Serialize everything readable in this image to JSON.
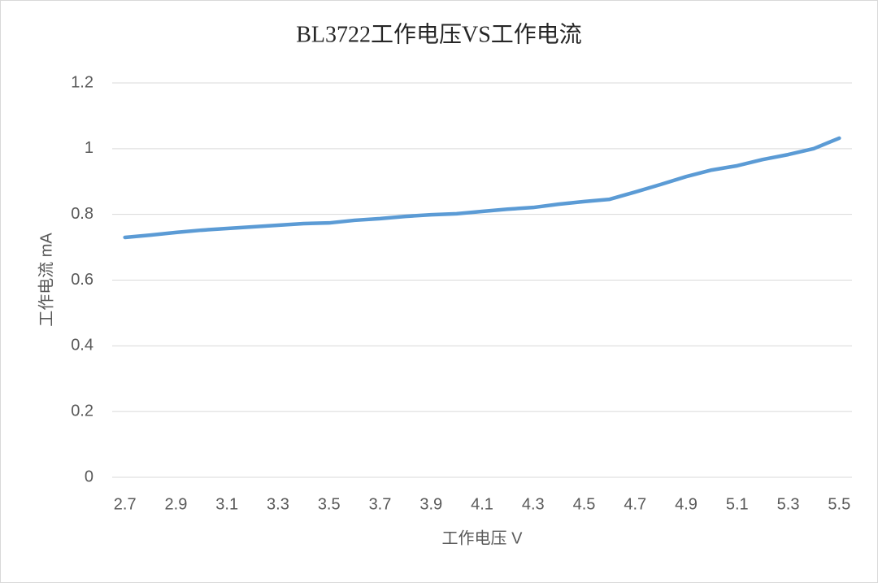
{
  "chart_data": {
    "type": "line",
    "title": "BL3722工作电压VS工作电流",
    "x_label": "工作电压 V",
    "y_label": "工作电流 mA",
    "x": [
      2.7,
      2.8,
      2.9,
      3.0,
      3.1,
      3.2,
      3.3,
      3.4,
      3.5,
      3.6,
      3.7,
      3.8,
      3.9,
      4.0,
      4.1,
      4.2,
      4.3,
      4.4,
      4.5,
      4.6,
      4.7,
      4.8,
      4.9,
      5.0,
      5.1,
      5.2,
      5.3,
      5.4,
      5.5
    ],
    "series": [
      {
        "name": "工作电流",
        "color": "#5b9bd5",
        "values": [
          0.73,
          0.737,
          0.745,
          0.752,
          0.757,
          0.762,
          0.767,
          0.772,
          0.774,
          0.782,
          0.787,
          0.794,
          0.799,
          0.802,
          0.809,
          0.816,
          0.821,
          0.831,
          0.839,
          0.846,
          0.868,
          0.891,
          0.915,
          0.935,
          0.948,
          0.967,
          0.982,
          1.0,
          1.032
        ]
      }
    ],
    "xlim": [
      2.65,
      5.55
    ],
    "xticks": [
      2.7,
      2.9,
      3.1,
      3.3,
      3.5,
      3.7,
      3.9,
      4.1,
      4.3,
      4.5,
      4.7,
      4.9,
      5.1,
      5.3,
      5.5
    ],
    "ylim": [
      0,
      1.2
    ],
    "yticks": [
      0,
      0.2,
      0.4,
      0.6,
      0.8,
      1,
      1.2
    ],
    "grid": true
  }
}
